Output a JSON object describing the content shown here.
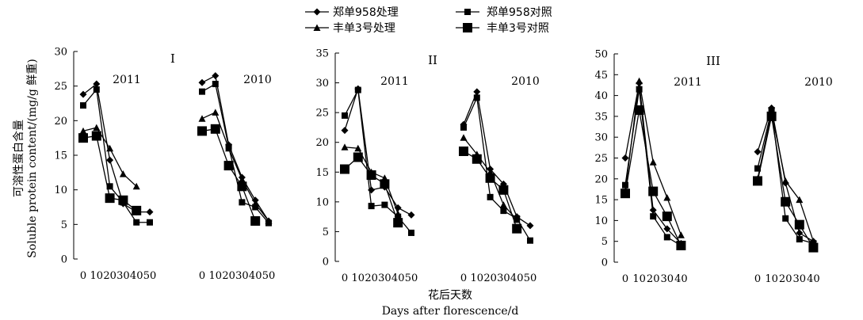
{
  "chart_data": {
    "type": "line",
    "legend": [
      "郑单958处理",
      "郑单958对照",
      "丰单3号处理",
      "丰单3号对照"
    ],
    "ylabel_cn": "可溶性蛋白含量",
    "ylabel_en": "Soluble protein content/(mg/g 鲜重)",
    "xlabel_cn": "花后天数",
    "xlabel_en": "Days after florescence/d",
    "panels": [
      {
        "label": "I",
        "ylim": [
          0,
          30
        ],
        "yticks": [
          0,
          5,
          10,
          15,
          20,
          25,
          30
        ],
        "groups": [
          {
            "year": "2011",
            "x": [
              0,
              10,
              20,
              30,
              40,
              50
            ],
            "series": [
              {
                "values": [
                  23.8,
                  25.3,
                  14.3,
                  8.0,
                  6.8,
                  6.8
                ]
              },
              {
                "values": [
                  22.2,
                  24.5,
                  10.5,
                  8.2,
                  5.3,
                  5.3
                ]
              },
              {
                "values": [
                  18.5,
                  19.0,
                  16.0,
                  12.3,
                  10.5,
                  null
                ]
              },
              {
                "values": [
                  17.5,
                  17.8,
                  8.8,
                  8.5,
                  7.0,
                  null
                ]
              }
            ]
          },
          {
            "year": "2010",
            "x": [
              0,
              10,
              20,
              30,
              40,
              50
            ],
            "series": [
              {
                "values": [
                  25.5,
                  26.5,
                  16.5,
                  11.8,
                  8.5,
                  5.5
                ]
              },
              {
                "values": [
                  24.2,
                  25.3,
                  16.2,
                  8.2,
                  7.5,
                  5.2
                ]
              },
              {
                "values": [
                  20.3,
                  21.2,
                  16.0,
                  11.5,
                  8.0,
                  5.5
                ]
              },
              {
                "values": [
                  18.5,
                  18.8,
                  13.5,
                  10.5,
                  5.5,
                  null
                ]
              }
            ]
          }
        ]
      },
      {
        "label": "II",
        "ylim": [
          0,
          35
        ],
        "yticks": [
          0,
          5,
          10,
          15,
          20,
          25,
          30,
          35
        ],
        "groups": [
          {
            "year": "2011",
            "x": [
              0,
              10,
              20,
              30,
              40,
              50
            ],
            "series": [
              {
                "values": [
                  22.0,
                  29.0,
                  12.0,
                  12.5,
                  9.0,
                  7.8
                ]
              },
              {
                "values": [
                  24.5,
                  28.8,
                  9.3,
                  9.5,
                  7.5,
                  4.8
                ]
              },
              {
                "values": [
                  19.2,
                  19.0,
                  15.0,
                  14.0,
                  8.0,
                  null
                ]
              },
              {
                "values": [
                  15.5,
                  17.5,
                  14.5,
                  13.0,
                  6.5,
                  null
                ]
              }
            ]
          },
          {
            "year": "2010",
            "x": [
              0,
              10,
              20,
              30,
              40,
              50
            ],
            "series": [
              {
                "values": [
                  23.0,
                  28.5,
                  15.5,
                  13.0,
                  7.5,
                  6.0
                ]
              },
              {
                "values": [
                  22.5,
                  27.5,
                  10.8,
                  8.5,
                  7.2,
                  3.5
                ]
              },
              {
                "values": [
                  20.8,
                  18.0,
                  15.0,
                  9.5,
                  7.0,
                  null
                ]
              },
              {
                "values": [
                  18.5,
                  17.2,
                  14.0,
                  12.0,
                  5.5,
                  null
                ]
              }
            ]
          }
        ]
      },
      {
        "label": "III",
        "ylim": [
          0,
          50
        ],
        "yticks": [
          0,
          5,
          10,
          15,
          20,
          25,
          30,
          35,
          40,
          45,
          50
        ],
        "groups": [
          {
            "year": "2011",
            "x": [
              0,
              10,
              20,
              30,
              40
            ],
            "series": [
              {
                "values": [
                  25.0,
                  43.0,
                  12.5,
                  8.0,
                  4.5
                ]
              },
              {
                "values": [
                  18.5,
                  41.5,
                  11.0,
                  6.0,
                  4.0
                ]
              },
              {
                "values": [
                  17.0,
                  43.5,
                  24.0,
                  15.5,
                  6.5
                ]
              },
              {
                "values": [
                  16.5,
                  36.5,
                  17.0,
                  11.0,
                  4.0
                ]
              }
            ]
          },
          {
            "year": "2010",
            "x": [
              0,
              10,
              20,
              30,
              40
            ],
            "series": [
              {
                "values": [
                  26.5,
                  37.0,
                  19.0,
                  7.0,
                  5.0
                ]
              },
              {
                "values": [
                  22.5,
                  36.5,
                  10.5,
                  5.5,
                  4.5
                ]
              },
              {
                "values": [
                  20.0,
                  36.0,
                  19.5,
                  15.0,
                  5.0
                ]
              },
              {
                "values": [
                  19.5,
                  35.0,
                  14.5,
                  9.0,
                  3.5
                ]
              }
            ]
          }
        ]
      }
    ]
  }
}
